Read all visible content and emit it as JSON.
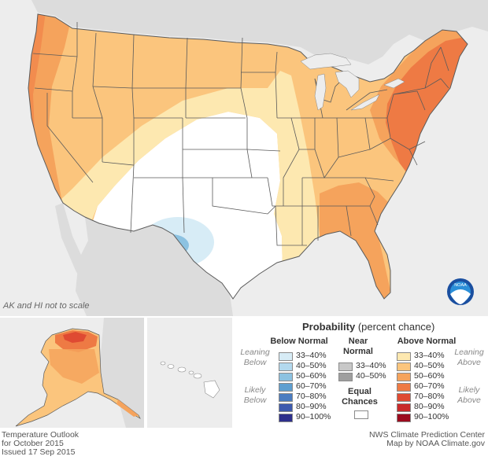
{
  "map_note": "AK and HI not to scale",
  "legend": {
    "title_bold": "Probability",
    "title_rest": "(percent chance)",
    "below": {
      "heading": "Below Normal",
      "leaning": "Leaning\nBelow",
      "likely": "Likely\nBelow",
      "bins": [
        {
          "label": "33–40%",
          "color": "#d7ecf6"
        },
        {
          "label": "40–50%",
          "color": "#b3d9ee"
        },
        {
          "label": "50–60%",
          "color": "#8cc2e1"
        },
        {
          "label": "60–70%",
          "color": "#5e9fd0"
        },
        {
          "label": "70–80%",
          "color": "#4a7cc0"
        },
        {
          "label": "80–90%",
          "color": "#3d5aae"
        },
        {
          "label": "90–100%",
          "color": "#2d2f8c"
        }
      ]
    },
    "near": {
      "heading": "Near\nNormal",
      "bins": [
        {
          "label": "33–40%",
          "color": "#c8c8c8"
        },
        {
          "label": "40–50%",
          "color": "#9f9f9f"
        }
      ]
    },
    "equal": {
      "heading": "Equal\nChances",
      "color": "#ffffff"
    },
    "above": {
      "heading": "Above Normal",
      "leaning": "Leaning\nAbove",
      "likely": "Likely\nAbove",
      "bins": [
        {
          "label": "33–40%",
          "color": "#fde8b0"
        },
        {
          "label": "40–50%",
          "color": "#fbc57d"
        },
        {
          "label": "50–60%",
          "color": "#f5a35c"
        },
        {
          "label": "60–70%",
          "color": "#ee7a44"
        },
        {
          "label": "70–80%",
          "color": "#df4a32"
        },
        {
          "label": "80–90%",
          "color": "#c92a2a"
        },
        {
          "label": "90–100%",
          "color": "#9c0b1e"
        }
      ]
    }
  },
  "footer": {
    "left_line1": "Temperature Outlook",
    "left_line2": "for October 2015",
    "left_line3": "Issued 17 Sep 2015",
    "right_line1": "NWS Climate Prediction Center",
    "right_line2": "Map by NOAA Climate.gov"
  },
  "logo_text": "NOAA",
  "colors": {
    "land_outside": "#dcdcdc",
    "water": "#ededed",
    "state_border": "#5a5a5a"
  }
}
